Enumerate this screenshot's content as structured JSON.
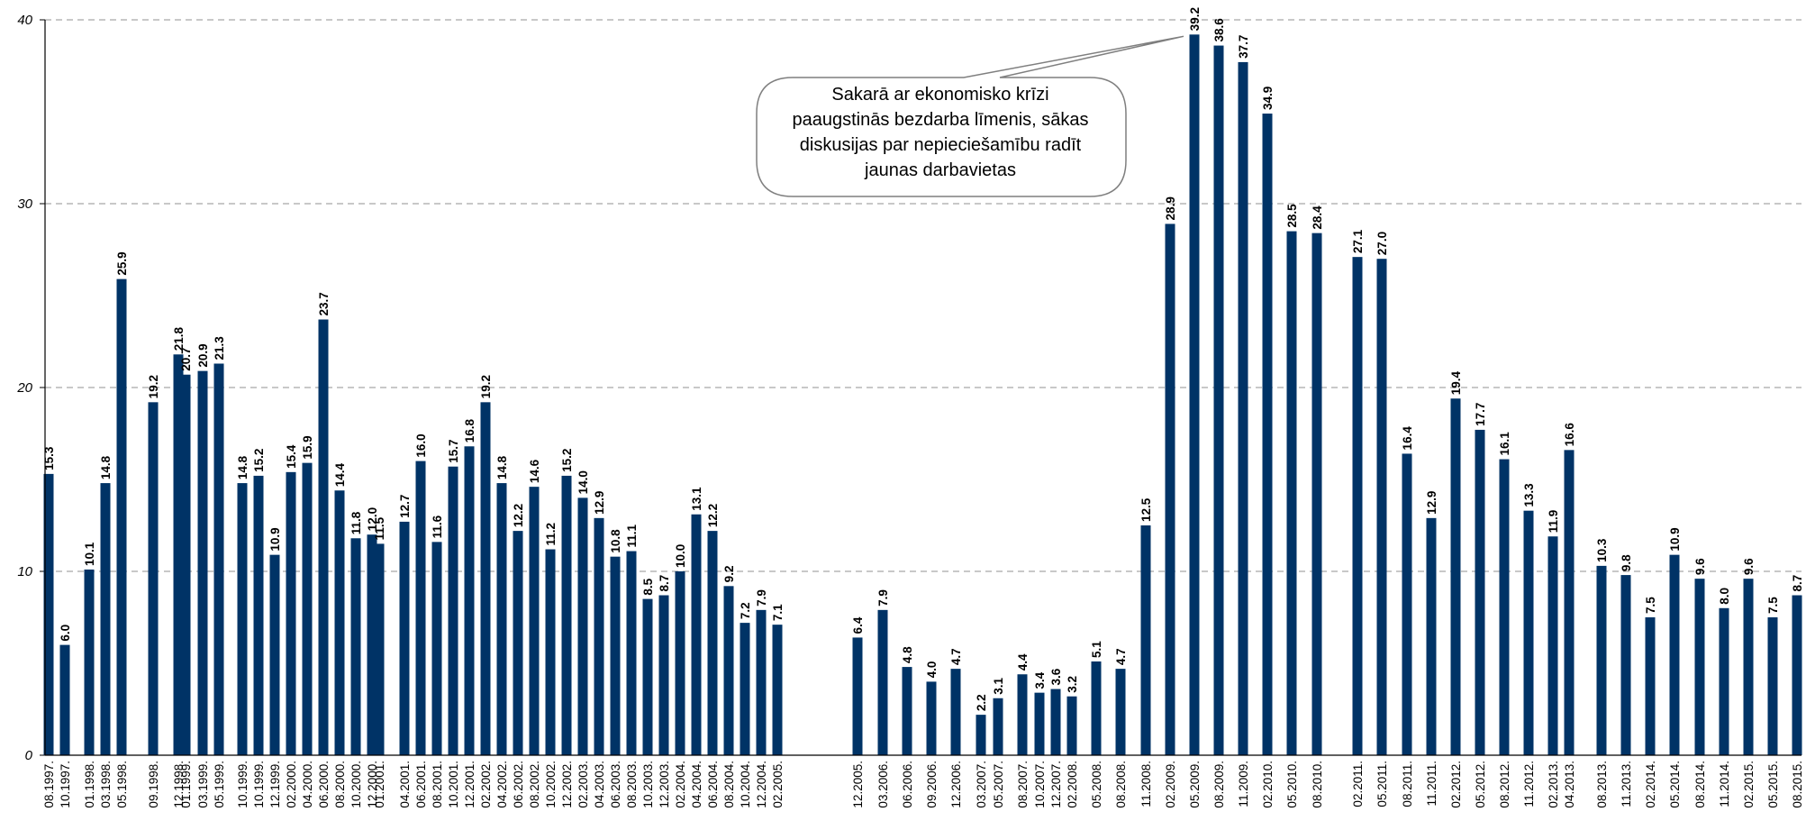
{
  "colors": {
    "bar": "#003366",
    "grid": "#a6a6a6",
    "axis": "#000000",
    "callout_stroke": "#7f7f7f"
  },
  "chart_data": {
    "type": "bar",
    "ylim": [
      0,
      40
    ],
    "yticks": [
      0,
      10,
      20,
      30,
      40
    ],
    "grid": true,
    "grid_style": "dashed",
    "legend": "none",
    "categories": [
      "08.1997.",
      "10.1997.",
      "01.1998.",
      "03.1998.",
      "05.1998.",
      "09.1998.",
      "12.1998.",
      "01.1999.",
      "03.1999.",
      "05.1999.",
      "10.1999.",
      "10.1999.",
      "12.1999.",
      "02.2000.",
      "04.2000.",
      "06.2000.",
      "08.2000.",
      "10.2000.",
      "12.2000.",
      "01.2001.",
      "04.2001.",
      "06.2001.",
      "08.2001.",
      "10.2001.",
      "12.2001.",
      "02.2002.",
      "04.2002.",
      "06.2002.",
      "08.2002.",
      "10.2002.",
      "12.2002.",
      "02.2003.",
      "04.2003.",
      "06.2003.",
      "08.2003.",
      "10.2003.",
      "12.2003.",
      "02.2004.",
      "04.2004.",
      "06.2004.",
      "08.2004.",
      "10.2004.",
      "12.2004.",
      "02.2005.",
      "12.2005.",
      "03.2006.",
      "06.2006.",
      "09.2006.",
      "12.2006.",
      "03.2007.",
      "05.2007.",
      "08.2007.",
      "10.2007.",
      "12.2007.",
      "02.2008.",
      "05.2008.",
      "08.2008.",
      "11.2008.",
      "02.2009.",
      "05.2009.",
      "08.2009.",
      "11.2009.",
      "02.2010.",
      "05.2010.",
      "08.2010.",
      "02.2011.",
      "05.2011.",
      "08.2011.",
      "11.2011.",
      "02.2012.",
      "05.2012.",
      "08.2012.",
      "11.2012.",
      "02.2013.",
      "04.2013.",
      "08.2013.",
      "11.2013.",
      "02.2014.",
      "05.2014.",
      "08.2014.",
      "11.2014.",
      "02.2015.",
      "05.2015.",
      "08.2015."
    ],
    "values": [
      15.3,
      6.0,
      10.1,
      14.8,
      25.9,
      19.2,
      21.8,
      20.7,
      20.9,
      21.3,
      14.8,
      15.2,
      10.9,
      15.4,
      15.9,
      23.7,
      14.4,
      11.8,
      12.0,
      11.5,
      12.7,
      16.0,
      11.6,
      15.7,
      16.8,
      19.2,
      14.8,
      12.2,
      14.6,
      11.2,
      15.2,
      14.0,
      12.9,
      10.8,
      11.1,
      8.5,
      8.7,
      10.0,
      13.1,
      12.2,
      9.2,
      7.2,
      7.9,
      7.1,
      6.4,
      7.9,
      4.8,
      4.0,
      4.7,
      2.2,
      3.1,
      4.4,
      3.4,
      3.6,
      3.2,
      5.1,
      4.7,
      12.5,
      28.9,
      39.2,
      38.6,
      37.7,
      34.9,
      28.5,
      28.4,
      27.1,
      27.0,
      16.4,
      12.9,
      19.4,
      17.7,
      16.1,
      13.3,
      11.9,
      16.6,
      10.3,
      9.8,
      7.5,
      10.9,
      9.6,
      8.0,
      9.6,
      7.5,
      8.7
    ],
    "value_labels": [
      "15.3",
      "6.0",
      "10.1",
      "14.8",
      "25.9",
      "19.2",
      "21.8",
      "20.7",
      "20.9",
      "21.3",
      "14.8",
      "15.2",
      "10.9",
      "15.4",
      "15.9",
      "23.7",
      "14.4",
      "11.8",
      "12.0",
      "11.5",
      "12.7",
      "16.0",
      "11.6",
      "15.7",
      "16.8",
      "19.2",
      "14.8",
      "12.2",
      "14.6",
      "11.2",
      "15.2",
      "14.0",
      "12.9",
      "10.8",
      "11.1",
      "8.5",
      "8.7",
      "10.0",
      "13.1",
      "12.2",
      "9.2",
      "7.2",
      "7.9",
      "7.1",
      "6.4",
      "7.9",
      "4.8",
      "4.0",
      "4.7",
      "2.2",
      "3.1",
      "4.4",
      "3.4",
      "3.6",
      "3.2",
      "5.1",
      "4.7",
      "12.5",
      "28.9",
      "39.2",
      "38.6",
      "37.7",
      "34.9",
      "28.5",
      "28.4",
      "27.1",
      "27.0",
      "16.4",
      "12.9",
      "19.4",
      "17.7",
      "16.1",
      "13.3",
      "11.9",
      "16.6",
      "10.3",
      "9.8",
      "7.5",
      "10.9",
      "9.6",
      "8.0",
      "9.6",
      "7.5",
      "8.7"
    ],
    "annotation": {
      "lines": [
        "Sakarā ar ekonomisko krīzi",
        "paaugstinās bezdarba līmenis, sākas",
        "diskusijas par nepieciešamību radīt",
        "jaunas darbavietas"
      ],
      "points_to": "05.2009."
    }
  }
}
